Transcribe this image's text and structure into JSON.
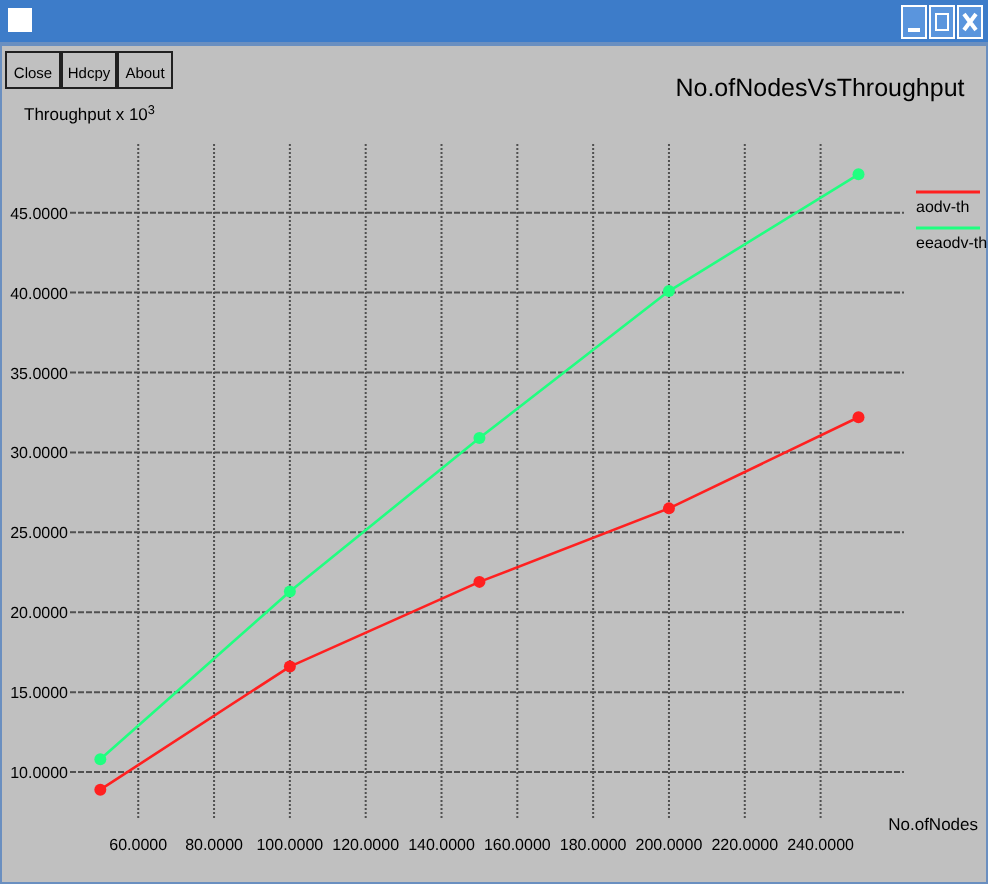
{
  "chart_data": {
    "type": "line",
    "title": "No.ofNodesVsThroughput",
    "xlabel": "No.ofNodes",
    "ylabel": "Throughput x 10$^{3}$",
    "annotations": [
      "Close",
      "Hdcpy",
      "About"
    ],
    "x": [
      50,
      100,
      150,
      200,
      250
    ],
    "series": [
      {
        "name": "aodv-th",
        "color": "#ff2020",
        "values": [
          8.9,
          16.6,
          21.9,
          26.5,
          32.2
        ]
      },
      {
        "name": "eeaodv-th",
        "color": "#20ff80",
        "values": [
          10.8,
          21.3,
          30.9,
          40.1,
          47.4
        ]
      }
    ],
    "xlim": [
      42,
      262
    ],
    "ylim": [
      7,
      49.3
    ],
    "xticks": [
      {
        "value": 60,
        "label": "60.0000"
      },
      {
        "value": 80,
        "label": "80.0000"
      },
      {
        "value": 100,
        "label": "100.0000"
      },
      {
        "value": 120,
        "label": "120.0000"
      },
      {
        "value": 140,
        "label": "140.0000"
      },
      {
        "value": 160,
        "label": "160.0000"
      },
      {
        "value": 180,
        "label": "180.0000"
      },
      {
        "value": 200,
        "label": "200.0000"
      },
      {
        "value": 220,
        "label": "220.0000"
      },
      {
        "value": 240,
        "label": "240.0000"
      }
    ],
    "yticks": [
      {
        "value": 10,
        "label": "10.0000"
      },
      {
        "value": 15,
        "label": "15.0000"
      },
      {
        "value": 20,
        "label": "20.0000"
      },
      {
        "value": 25,
        "label": "25.0000"
      },
      {
        "value": 30,
        "label": "30.0000"
      },
      {
        "value": 35,
        "label": "35.0000"
      },
      {
        "value": 40,
        "label": "40.0000"
      },
      {
        "value": 45,
        "label": "45.0000"
      }
    ],
    "grid": true,
    "legend": "top right",
    "marker": "circle",
    "line_style": "solid"
  }
}
